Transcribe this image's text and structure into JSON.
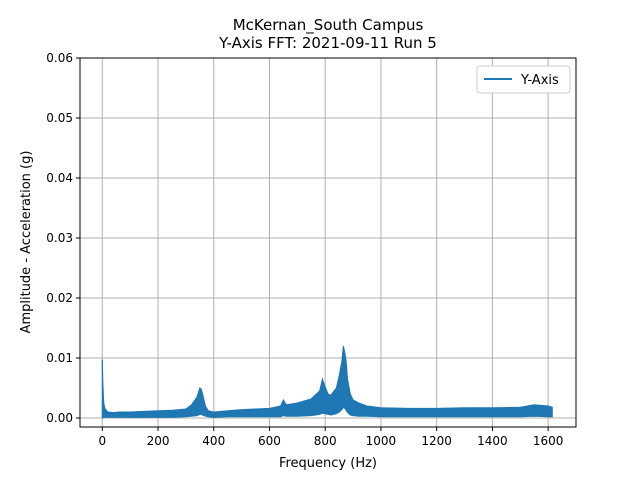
{
  "chart_data": {
    "type": "line",
    "title_line1": "McKernan_South Campus",
    "title_line2": "Y-Axis FFT: 2021-09-11 Run 5",
    "xlabel": "Frequency (Hz)",
    "ylabel": "Amplitude - Acceleration (g)",
    "xlim": [
      -80,
      1700
    ],
    "ylim": [
      -0.0015,
      0.06
    ],
    "xticks": [
      0,
      200,
      400,
      600,
      800,
      1000,
      1200,
      1400,
      1600
    ],
    "xtick_labels": [
      "0",
      "200",
      "400",
      "600",
      "800",
      "1000",
      "1200",
      "1400",
      "1600"
    ],
    "yticks": [
      0.0,
      0.01,
      0.02,
      0.03,
      0.04,
      0.05,
      0.06
    ],
    "ytick_labels": [
      "0.00",
      "0.01",
      "0.02",
      "0.03",
      "0.04",
      "0.05",
      "0.06"
    ],
    "grid": true,
    "legend_position": "top-right",
    "series": [
      {
        "name": "Y-Axis",
        "color": "#1f77b4",
        "x": [
          0,
          2,
          5,
          10,
          20,
          40,
          60,
          100,
          150,
          200,
          250,
          300,
          320,
          340,
          350,
          355,
          360,
          370,
          380,
          400,
          450,
          500,
          550,
          600,
          640,
          650,
          660,
          700,
          750,
          780,
          790,
          800,
          810,
          820,
          840,
          850,
          860,
          865,
          870,
          875,
          880,
          890,
          900,
          920,
          950,
          1000,
          1100,
          1200,
          1300,
          1400,
          1500,
          1550,
          1600,
          1615
        ],
        "upper": [
          0.0097,
          0.006,
          0.0025,
          0.0015,
          0.001,
          0.0009,
          0.001,
          0.001,
          0.0011,
          0.0012,
          0.0013,
          0.0015,
          0.0022,
          0.0035,
          0.005,
          0.0048,
          0.004,
          0.002,
          0.0012,
          0.001,
          0.0012,
          0.0014,
          0.0015,
          0.0016,
          0.002,
          0.003,
          0.0022,
          0.0025,
          0.0032,
          0.0045,
          0.0065,
          0.0052,
          0.004,
          0.0038,
          0.005,
          0.007,
          0.0095,
          0.012,
          0.011,
          0.0095,
          0.0065,
          0.004,
          0.003,
          0.0025,
          0.002,
          0.0017,
          0.0016,
          0.0016,
          0.0017,
          0.0017,
          0.0018,
          0.0022,
          0.002,
          0.0018
        ],
        "lower": [
          0.0,
          0.0,
          0.0002,
          0.0001,
          0.0001,
          0.0001,
          0.0001,
          0.0001,
          0.0001,
          0.0001,
          0.0001,
          0.0002,
          0.0003,
          0.0004,
          0.0006,
          0.0006,
          0.0005,
          0.0003,
          0.0002,
          0.0001,
          0.0002,
          0.0002,
          0.0002,
          0.0002,
          0.0002,
          0.0004,
          0.0003,
          0.0003,
          0.0004,
          0.0006,
          0.0008,
          0.0007,
          0.0006,
          0.0005,
          0.0007,
          0.001,
          0.0014,
          0.0018,
          0.0016,
          0.0013,
          0.0009,
          0.0005,
          0.0004,
          0.0003,
          0.0003,
          0.0002,
          0.0002,
          0.0002,
          0.0002,
          0.0002,
          0.0002,
          0.0003,
          0.0002,
          0.0002
        ]
      }
    ]
  }
}
